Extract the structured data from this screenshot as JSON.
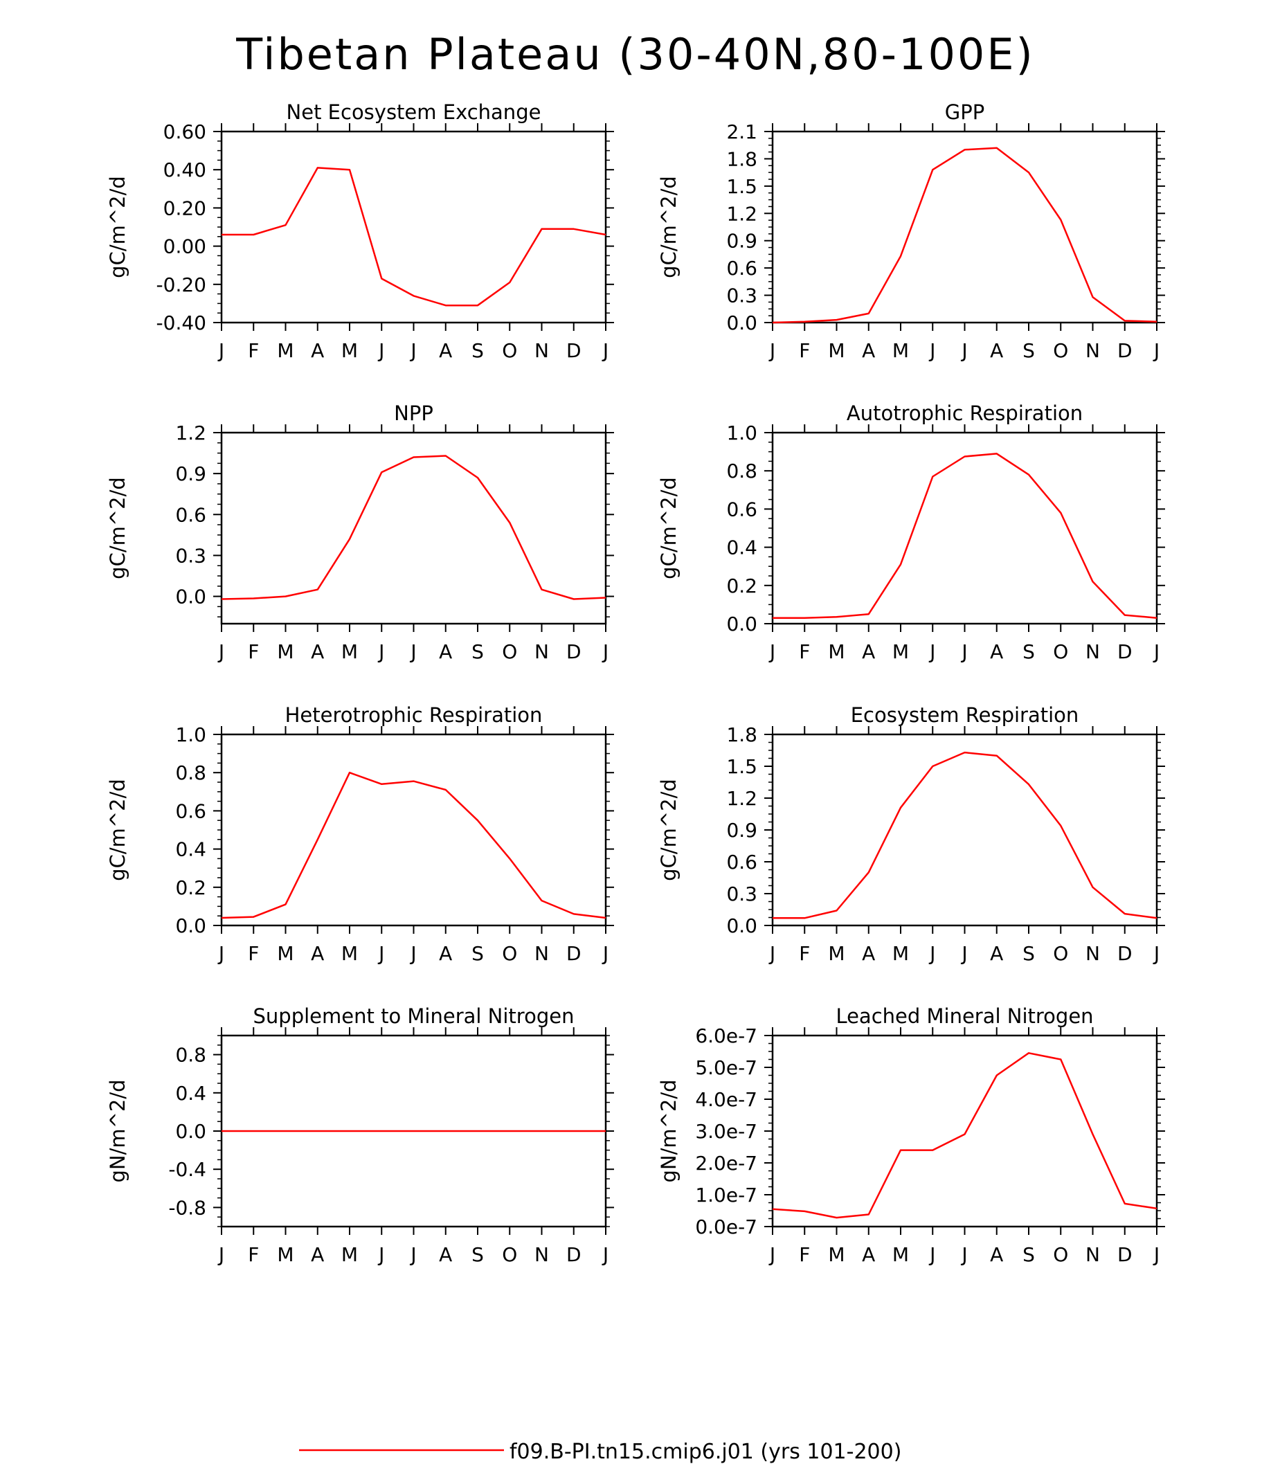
{
  "figure": {
    "title": "Tibetan Plateau (30-40N,80-100E)",
    "legend": {
      "label": "f09.B-PI.tn15.cmip6.j01  (yrs 101-200)",
      "color": "#ff0000",
      "placement": "bottom-center"
    }
  },
  "chart_data": [
    {
      "type": "line",
      "title": "Net Ecosystem Exchange",
      "ylabel": "gC/m^2/d",
      "categories": [
        "J",
        "F",
        "M",
        "A",
        "M",
        "J",
        "J",
        "A",
        "S",
        "O",
        "N",
        "D",
        "J"
      ],
      "ylim": [
        -0.4,
        0.6
      ],
      "yticks": [
        -0.4,
        -0.2,
        0.0,
        0.2,
        0.4,
        0.6
      ],
      "ytick_labels": [
        "-0.40",
        "-0.20",
        "0.00",
        "0.20",
        "0.40",
        "0.60"
      ],
      "series": [
        {
          "values": [
            0.06,
            0.06,
            0.11,
            0.41,
            0.4,
            -0.17,
            -0.26,
            -0.31,
            -0.31,
            -0.19,
            0.09,
            0.09,
            0.06
          ]
        }
      ]
    },
    {
      "type": "line",
      "title": "GPP",
      "ylabel": "gC/m^2/d",
      "categories": [
        "J",
        "F",
        "M",
        "A",
        "M",
        "J",
        "J",
        "A",
        "S",
        "O",
        "N",
        "D",
        "J"
      ],
      "ylim": [
        0.0,
        2.1
      ],
      "yticks": [
        0.0,
        0.3,
        0.6,
        0.9,
        1.2,
        1.5,
        1.8,
        2.1
      ],
      "ytick_labels": [
        "0.0",
        "0.3",
        "0.6",
        "0.9",
        "1.2",
        "1.5",
        "1.8",
        "2.1"
      ],
      "series": [
        {
          "values": [
            0.0,
            0.01,
            0.03,
            0.1,
            0.73,
            1.68,
            1.9,
            1.92,
            1.65,
            1.13,
            0.28,
            0.02,
            0.01
          ]
        }
      ]
    },
    {
      "type": "line",
      "title": "NPP",
      "ylabel": "gC/m^2/d",
      "categories": [
        "J",
        "F",
        "M",
        "A",
        "M",
        "J",
        "J",
        "A",
        "S",
        "O",
        "N",
        "D",
        "J"
      ],
      "ylim": [
        -0.2,
        1.2
      ],
      "yticks": [
        0.0,
        0.3,
        0.6,
        0.9,
        1.2
      ],
      "ytick_labels": [
        "0.0",
        "0.3",
        "0.6",
        "0.9",
        "1.2"
      ],
      "series": [
        {
          "values": [
            -0.02,
            -0.015,
            0.0,
            0.05,
            0.42,
            0.91,
            1.02,
            1.03,
            0.87,
            0.54,
            0.05,
            -0.02,
            -0.01
          ]
        }
      ]
    },
    {
      "type": "line",
      "title": "Autotrophic Respiration",
      "ylabel": "gC/m^2/d",
      "categories": [
        "J",
        "F",
        "M",
        "A",
        "M",
        "J",
        "J",
        "A",
        "S",
        "O",
        "N",
        "D",
        "J"
      ],
      "ylim": [
        0.0,
        1.0
      ],
      "yticks": [
        0.0,
        0.2,
        0.4,
        0.6,
        0.8,
        1.0
      ],
      "ytick_labels": [
        "0.0",
        "0.2",
        "0.4",
        "0.6",
        "0.8",
        "1.0"
      ],
      "series": [
        {
          "values": [
            0.03,
            0.03,
            0.035,
            0.05,
            0.31,
            0.77,
            0.875,
            0.89,
            0.78,
            0.58,
            0.22,
            0.045,
            0.03
          ]
        }
      ]
    },
    {
      "type": "line",
      "title": "Heterotrophic Respiration",
      "ylabel": "gC/m^2/d",
      "categories": [
        "J",
        "F",
        "M",
        "A",
        "M",
        "J",
        "J",
        "A",
        "S",
        "O",
        "N",
        "D",
        "J"
      ],
      "ylim": [
        0.0,
        1.0
      ],
      "yticks": [
        0.0,
        0.2,
        0.4,
        0.6,
        0.8,
        1.0
      ],
      "ytick_labels": [
        "0.0",
        "0.2",
        "0.4",
        "0.6",
        "0.8",
        "1.0"
      ],
      "series": [
        {
          "values": [
            0.04,
            0.045,
            0.11,
            0.45,
            0.8,
            0.74,
            0.755,
            0.71,
            0.55,
            0.35,
            0.13,
            0.06,
            0.04
          ]
        }
      ]
    },
    {
      "type": "line",
      "title": "Ecosystem Respiration",
      "ylabel": "gC/m^2/d",
      "categories": [
        "J",
        "F",
        "M",
        "A",
        "M",
        "J",
        "J",
        "A",
        "S",
        "O",
        "N",
        "D",
        "J"
      ],
      "ylim": [
        0.0,
        1.8
      ],
      "yticks": [
        0.0,
        0.3,
        0.6,
        0.9,
        1.2,
        1.5,
        1.8
      ],
      "ytick_labels": [
        "0.0",
        "0.3",
        "0.6",
        "0.9",
        "1.2",
        "1.5",
        "1.8"
      ],
      "series": [
        {
          "values": [
            0.07,
            0.07,
            0.14,
            0.5,
            1.11,
            1.5,
            1.63,
            1.6,
            1.33,
            0.94,
            0.36,
            0.11,
            0.07
          ]
        }
      ]
    },
    {
      "type": "line",
      "title": "Supplement to Mineral Nitrogen",
      "ylabel": "gN/m^2/d",
      "categories": [
        "J",
        "F",
        "M",
        "A",
        "M",
        "J",
        "J",
        "A",
        "S",
        "O",
        "N",
        "D",
        "J"
      ],
      "ylim": [
        -1.0,
        1.0
      ],
      "yticks": [
        -0.8,
        -0.4,
        0.0,
        0.4,
        0.8
      ],
      "ytick_labels": [
        "-0.8",
        "-0.4",
        "0.0",
        "0.4",
        "0.8"
      ],
      "series": [
        {
          "values": [
            0,
            0,
            0,
            0,
            0,
            0,
            0,
            0,
            0,
            0,
            0,
            0,
            0
          ]
        }
      ]
    },
    {
      "type": "line",
      "title": "Leached Mineral Nitrogen",
      "ylabel": "gN/m^2/d",
      "categories": [
        "J",
        "F",
        "M",
        "A",
        "M",
        "J",
        "J",
        "A",
        "S",
        "O",
        "N",
        "D",
        "J"
      ],
      "ylim": [
        0.0,
        6e-07
      ],
      "yticks": [
        0.0,
        1e-07,
        2e-07,
        3e-07,
        4e-07,
        5e-07,
        6e-07
      ],
      "ytick_labels": [
        "0.0e-7",
        "1.0e-7",
        "2.0e-7",
        "3.0e-7",
        "4.0e-7",
        "5.0e-7",
        "6.0e-7"
      ],
      "series": [
        {
          "values": [
            5.5e-08,
            4.8e-08,
            2.8e-08,
            3.8e-08,
            2.4e-07,
            2.4e-07,
            2.9e-07,
            4.75e-07,
            5.45e-07,
            5.25e-07,
            2.9e-07,
            7.2e-08,
            5.7e-08
          ]
        }
      ]
    }
  ]
}
